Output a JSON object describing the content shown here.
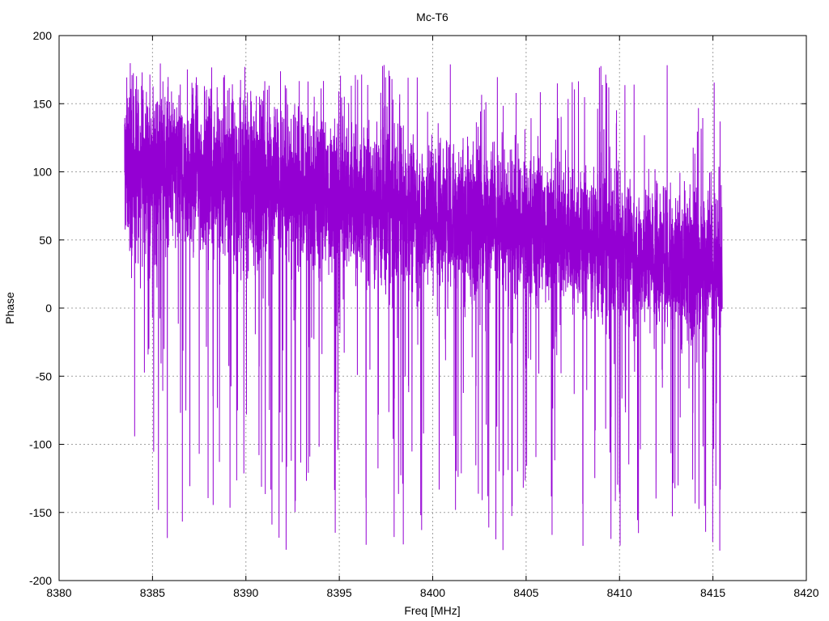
{
  "chart_data": {
    "type": "line",
    "title": "Mc-T6",
    "xlabel": "Freq [MHz]",
    "ylabel": "Phase",
    "xlim": [
      8380,
      8420
    ],
    "ylim": [
      -200,
      200
    ],
    "xticks": [
      8380,
      8385,
      8390,
      8395,
      8400,
      8405,
      8410,
      8415,
      8420
    ],
    "yticks": [
      -200,
      -150,
      -100,
      -50,
      0,
      50,
      100,
      150,
      200
    ],
    "grid": true,
    "legend": "none",
    "series_color": "#9400D3",
    "series": [
      {
        "x_range": [
          8383.5,
          8415.5
        ],
        "envelope": {
          "x": [
            8383.5,
            8387,
            8390,
            8395,
            8400,
            8405,
            8410,
            8413,
            8415.5
          ],
          "center": [
            105,
            100,
            95,
            82,
            70,
            60,
            45,
            35,
            30
          ],
          "spread": [
            45,
            45,
            45,
            45,
            42,
            40,
            40,
            40,
            45
          ]
        },
        "outlier_range": [
          -180,
          180
        ]
      }
    ]
  }
}
